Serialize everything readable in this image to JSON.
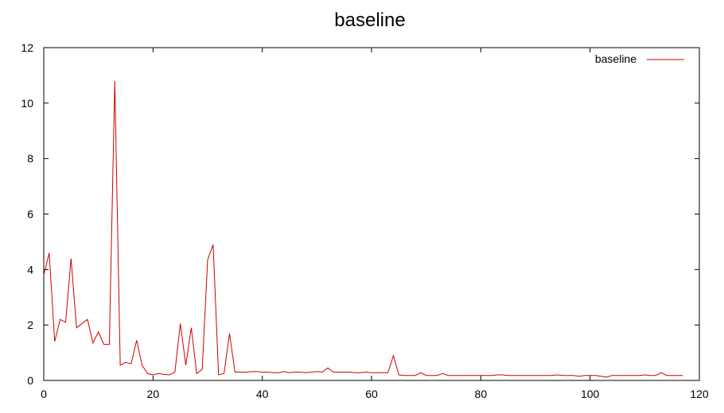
{
  "chart_data": {
    "type": "line",
    "title": "baseline",
    "xlabel": "",
    "ylabel": "",
    "xlim": [
      0,
      120
    ],
    "ylim": [
      0,
      12
    ],
    "xticks": [
      0,
      20,
      40,
      60,
      80,
      100,
      120
    ],
    "yticks": [
      0,
      2,
      4,
      6,
      8,
      10,
      12
    ],
    "grid": false,
    "legend": "top-right",
    "series": [
      {
        "name": "baseline",
        "color": "#cc0000",
        "x": [
          0,
          1,
          2,
          3,
          4,
          5,
          6,
          7,
          8,
          9,
          10,
          11,
          12,
          13,
          14,
          15,
          16,
          17,
          18,
          19,
          20,
          21,
          22,
          23,
          24,
          25,
          26,
          27,
          28,
          29,
          30,
          31,
          32,
          33,
          34,
          35,
          36,
          37,
          38,
          39,
          40,
          41,
          42,
          43,
          44,
          45,
          46,
          47,
          48,
          49,
          50,
          51,
          52,
          53,
          54,
          55,
          56,
          57,
          58,
          59,
          60,
          61,
          62,
          63,
          64,
          65,
          66,
          67,
          68,
          69,
          70,
          71,
          72,
          73,
          74,
          75,
          76,
          77,
          78,
          79,
          80,
          81,
          82,
          83,
          84,
          85,
          86,
          87,
          88,
          89,
          90,
          91,
          92,
          93,
          94,
          95,
          96,
          97,
          98,
          99,
          100,
          101,
          102,
          103,
          104,
          105,
          106,
          107,
          108,
          109,
          110,
          111,
          112,
          113,
          114,
          115,
          116,
          117
        ],
        "y": [
          3.8,
          4.6,
          1.4,
          2.2,
          2.1,
          4.4,
          1.9,
          2.05,
          2.2,
          1.35,
          1.75,
          1.3,
          1.3,
          10.8,
          0.55,
          0.65,
          0.6,
          1.45,
          0.55,
          0.25,
          0.2,
          0.25,
          0.22,
          0.2,
          0.3,
          2.05,
          0.55,
          1.9,
          0.25,
          0.4,
          4.35,
          4.9,
          0.2,
          0.25,
          1.7,
          0.3,
          0.3,
          0.3,
          0.32,
          0.32,
          0.3,
          0.3,
          0.28,
          0.28,
          0.32,
          0.28,
          0.3,
          0.3,
          0.28,
          0.3,
          0.32,
          0.3,
          0.45,
          0.3,
          0.3,
          0.3,
          0.3,
          0.28,
          0.28,
          0.3,
          0.28,
          0.28,
          0.28,
          0.28,
          0.9,
          0.2,
          0.18,
          0.18,
          0.18,
          0.28,
          0.18,
          0.18,
          0.18,
          0.25,
          0.18,
          0.18,
          0.18,
          0.18,
          0.18,
          0.18,
          0.18,
          0.18,
          0.18,
          0.2,
          0.2,
          0.18,
          0.18,
          0.18,
          0.18,
          0.18,
          0.18,
          0.18,
          0.18,
          0.18,
          0.2,
          0.18,
          0.18,
          0.18,
          0.15,
          0.18,
          0.18,
          0.18,
          0.15,
          0.12,
          0.18,
          0.18,
          0.18,
          0.18,
          0.18,
          0.18,
          0.2,
          0.18,
          0.18,
          0.28,
          0.18,
          0.18,
          0.18,
          0.18
        ]
      }
    ]
  }
}
